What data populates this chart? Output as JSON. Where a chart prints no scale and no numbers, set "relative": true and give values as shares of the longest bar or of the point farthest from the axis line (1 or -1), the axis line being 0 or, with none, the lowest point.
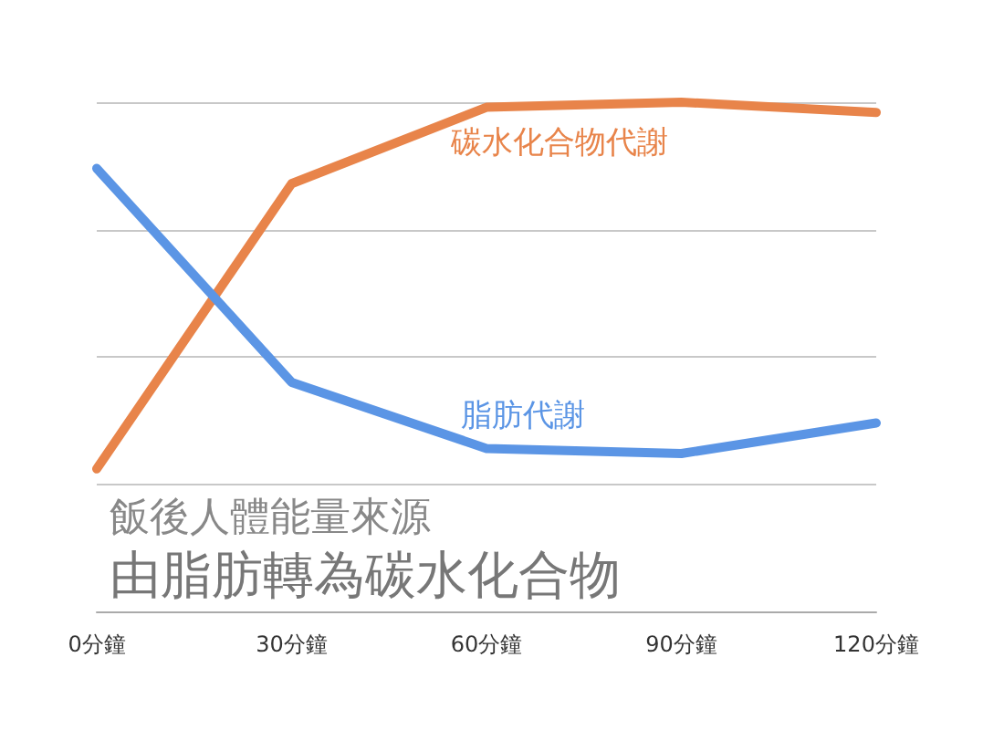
{
  "chart_data": {
    "type": "line",
    "title": "飯後人體能量來源",
    "subtitle": "由脂肪轉為碳水化合物",
    "categories": [
      "0分鐘",
      "30分鐘",
      "60分鐘",
      "90分鐘",
      "120分鐘"
    ],
    "relative": true,
    "grid": "y",
    "marker": "none",
    "line_style": "solid",
    "series": [
      {
        "name": "碳水化合物代謝",
        "color": "#e8844a",
        "values": [
          0.28,
          0.84,
          0.99,
          1,
          0.98
        ]
      },
      {
        "name": "脂肪代謝",
        "color": "#5b95e5",
        "values": [
          0.87,
          0.45,
          0.32,
          0.31,
          0.37
        ]
      }
    ]
  }
}
